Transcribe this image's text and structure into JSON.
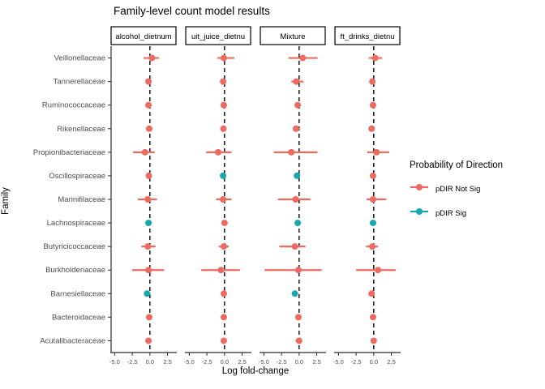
{
  "title": "Family-level count model results",
  "axes": {
    "x_label": "Log fold-change",
    "y_label": "Family",
    "x_tick_labels": [
      "-5.0",
      "-2.5",
      "0.0",
      "2.5"
    ],
    "x_tick_values": [
      -5.0,
      -2.5,
      0.0,
      2.5
    ],
    "x_domain": [
      -5.5,
      3.7
    ],
    "zero_line": 0
  },
  "legend": {
    "title": "Probability of Direction",
    "items": [
      {
        "label": "pDIR Not Sig",
        "color": "#EE6A5F"
      },
      {
        "label": "pDIR Sig",
        "color": "#16A8B0"
      }
    ]
  },
  "colors": {
    "not_sig": "#EE6A5F",
    "sig": "#16A8B0",
    "axis_line": "#2b2b2b",
    "tick_label": "#4D4D4D",
    "strip_border": "#000000",
    "strip_fill": "#ffffff",
    "zero_line": "#000000",
    "background": "#ffffff"
  },
  "chart_data": {
    "type": "scatter",
    "subtype": "faceted-forest-pointrange",
    "grid": "off",
    "legend_position": "right",
    "families": [
      "Veillonellaceae",
      "Tannerellaceae",
      "Ruminococcaceae",
      "Rikenellaceae",
      "Propionibacteriaceae",
      "Oscillospiraceae",
      "Marinifilaceae",
      "Lachnospiraceae",
      "Butyricicoccaceae",
      "Burkholderiaceae",
      "Barnesiellaceae",
      "Bacteroidaceae",
      "Acutalibacteraceae"
    ],
    "facets": [
      {
        "label": "alcohol_dietnum",
        "points": [
          {
            "v": 0.3,
            "lo": -0.9,
            "hi": 1.3,
            "sig": false
          },
          {
            "v": -0.2,
            "lo": -0.5,
            "hi": 0.1,
            "sig": false
          },
          {
            "v": -0.2,
            "lo": -0.4,
            "hi": 0.1,
            "sig": false
          },
          {
            "v": -0.1,
            "lo": -0.4,
            "hi": 0.2,
            "sig": false
          },
          {
            "v": -0.7,
            "lo": -2.4,
            "hi": 0.7,
            "sig": false
          },
          {
            "v": -0.15,
            "lo": -0.45,
            "hi": 0.15,
            "sig": false
          },
          {
            "v": -0.3,
            "lo": -1.7,
            "hi": 1.0,
            "sig": false
          },
          {
            "v": -0.2,
            "lo": -0.4,
            "hi": 0.1,
            "sig": true
          },
          {
            "v": -0.3,
            "lo": -1.2,
            "hi": 0.8,
            "sig": false
          },
          {
            "v": -0.2,
            "lo": -2.5,
            "hi": 2.0,
            "sig": false
          },
          {
            "v": -0.4,
            "lo": -0.7,
            "hi": 0.0,
            "sig": true
          },
          {
            "v": -0.1,
            "lo": -0.3,
            "hi": 0.2,
            "sig": false
          },
          {
            "v": -0.2,
            "lo": -0.5,
            "hi": 0.2,
            "sig": false
          }
        ]
      },
      {
        "label": "uit_juice_dietnu",
        "points": [
          {
            "v": -0.1,
            "lo": -1.0,
            "hi": 1.4,
            "sig": false
          },
          {
            "v": -0.2,
            "lo": -0.6,
            "hi": 0.2,
            "sig": false
          },
          {
            "v": -0.1,
            "lo": -0.3,
            "hi": 0.2,
            "sig": false
          },
          {
            "v": -0.15,
            "lo": -0.5,
            "hi": 0.2,
            "sig": false
          },
          {
            "v": -0.9,
            "lo": -2.6,
            "hi": 1.0,
            "sig": false
          },
          {
            "v": -0.2,
            "lo": -0.5,
            "hi": 0.1,
            "sig": true
          },
          {
            "v": -0.2,
            "lo": -1.2,
            "hi": 1.0,
            "sig": false
          },
          {
            "v": 0.0,
            "lo": -0.3,
            "hi": 0.3,
            "sig": false
          },
          {
            "v": -0.1,
            "lo": -0.8,
            "hi": 0.6,
            "sig": false
          },
          {
            "v": -0.5,
            "lo": -3.3,
            "hi": 2.2,
            "sig": false
          },
          {
            "v": -0.1,
            "lo": -0.4,
            "hi": 0.2,
            "sig": false
          },
          {
            "v": -0.1,
            "lo": -0.3,
            "hi": 0.2,
            "sig": false
          },
          {
            "v": -0.1,
            "lo": -0.5,
            "hi": 0.3,
            "sig": false
          }
        ]
      },
      {
        "label": "Mixture",
        "points": [
          {
            "v": 0.5,
            "lo": -1.5,
            "hi": 2.6,
            "sig": false
          },
          {
            "v": -0.4,
            "lo": -1.1,
            "hi": 0.6,
            "sig": false
          },
          {
            "v": -0.2,
            "lo": -0.5,
            "hi": 0.2,
            "sig": false
          },
          {
            "v": -0.45,
            "lo": -0.9,
            "hi": 0.1,
            "sig": false
          },
          {
            "v": -1.1,
            "lo": -3.6,
            "hi": 2.6,
            "sig": false
          },
          {
            "v": -0.3,
            "lo": -0.6,
            "hi": 0.0,
            "sig": true
          },
          {
            "v": -0.5,
            "lo": -3.0,
            "hi": 1.6,
            "sig": false
          },
          {
            "v": -0.2,
            "lo": -0.5,
            "hi": 0.1,
            "sig": true
          },
          {
            "v": -0.6,
            "lo": -2.8,
            "hi": 0.9,
            "sig": false
          },
          {
            "v": -0.1,
            "lo": -4.9,
            "hi": 3.2,
            "sig": false
          },
          {
            "v": -0.6,
            "lo": -0.9,
            "hi": -0.2,
            "sig": true
          },
          {
            "v": -0.1,
            "lo": -0.5,
            "hi": 0.3,
            "sig": false
          },
          {
            "v": 0.0,
            "lo": -0.5,
            "hi": 0.4,
            "sig": false
          }
        ]
      },
      {
        "label": "ft_drinks_dietnu",
        "points": [
          {
            "v": 0.2,
            "lo": -0.7,
            "hi": 1.2,
            "sig": false
          },
          {
            "v": -0.2,
            "lo": -0.5,
            "hi": 0.1,
            "sig": false
          },
          {
            "v": -0.1,
            "lo": -0.4,
            "hi": 0.2,
            "sig": false
          },
          {
            "v": -0.3,
            "lo": -0.6,
            "hi": 0.1,
            "sig": false
          },
          {
            "v": 0.4,
            "lo": -0.9,
            "hi": 2.2,
            "sig": false
          },
          {
            "v": -0.1,
            "lo": -0.4,
            "hi": 0.2,
            "sig": false
          },
          {
            "v": -0.1,
            "lo": -1.0,
            "hi": 1.8,
            "sig": false
          },
          {
            "v": -0.1,
            "lo": -0.4,
            "hi": 0.2,
            "sig": true
          },
          {
            "v": -0.2,
            "lo": -1.1,
            "hi": 0.6,
            "sig": false
          },
          {
            "v": 0.6,
            "lo": -2.5,
            "hi": 3.1,
            "sig": false
          },
          {
            "v": -0.3,
            "lo": -0.7,
            "hi": 0.1,
            "sig": false
          },
          {
            "v": -0.1,
            "lo": -0.3,
            "hi": 0.2,
            "sig": false
          },
          {
            "v": 0.0,
            "lo": -0.3,
            "hi": 0.3,
            "sig": false
          }
        ]
      }
    ]
  }
}
